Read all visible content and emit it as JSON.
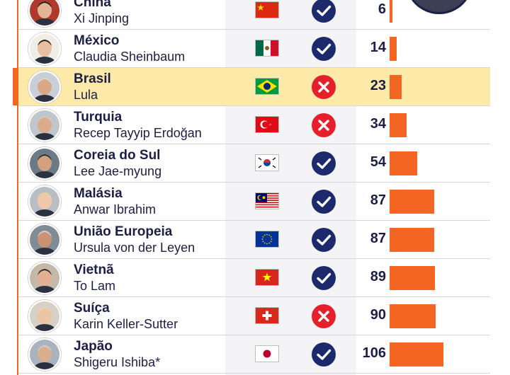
{
  "rows": [
    {
      "country": "China",
      "leader": "Xi Jinping",
      "flag": "cn",
      "status": "check",
      "value": 6,
      "highlight": false
    },
    {
      "country": "México",
      "leader": "Claudia Sheinbaum",
      "flag": "mx",
      "status": "check",
      "value": 14,
      "highlight": false
    },
    {
      "country": "Brasil",
      "leader": "Lula",
      "flag": "br",
      "status": "cross",
      "value": 23,
      "highlight": true
    },
    {
      "country": "Turquia",
      "leader": "Recep Tayyip Erdoğan",
      "flag": "tr",
      "status": "cross",
      "value": 34,
      "highlight": false
    },
    {
      "country": "Coreia do Sul",
      "leader": "Lee Jae-myung",
      "flag": "kr",
      "status": "check",
      "value": 54,
      "highlight": false
    },
    {
      "country": "Malásia",
      "leader": "Anwar Ibrahim",
      "flag": "my",
      "status": "check",
      "value": 87,
      "highlight": false
    },
    {
      "country": "União Europeia",
      "leader": "Ursula von der Leyen",
      "flag": "eu",
      "status": "check",
      "value": 87,
      "highlight": false
    },
    {
      "country": "Vietnã",
      "leader": "To Lam",
      "flag": "vn",
      "status": "check",
      "value": 89,
      "highlight": false
    },
    {
      "country": "Suíça",
      "leader": "Karin Keller-Sutter",
      "flag": "ch",
      "status": "cross",
      "value": 90,
      "highlight": false
    },
    {
      "country": "Japão",
      "leader": "Shigeru Ishiba*",
      "flag": "jp",
      "status": "check",
      "value": 106,
      "highlight": false
    }
  ],
  "chart_data": {
    "type": "bar",
    "categories": [
      "China",
      "México",
      "Brasil",
      "Turquia",
      "Coreia do Sul",
      "Malásia",
      "União Europeia",
      "Vietnã",
      "Suíça",
      "Japão"
    ],
    "values": [
      6,
      14,
      23,
      34,
      54,
      87,
      87,
      89,
      90,
      106
    ]
  },
  "colors": {
    "accent": "#f26522",
    "text": "#1c1f45",
    "highlight": "#fde9a8",
    "check": "#1c2a6b",
    "cross": "#e5202a"
  }
}
